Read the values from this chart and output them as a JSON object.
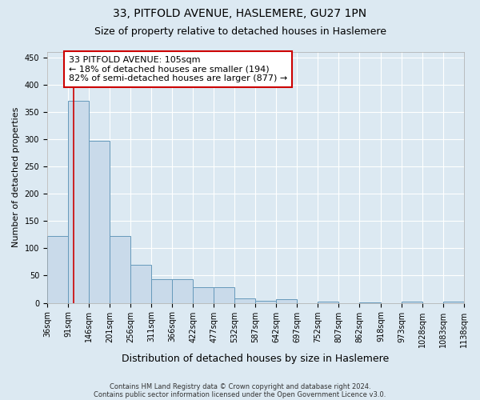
{
  "title": "33, PITFOLD AVENUE, HASLEMERE, GU27 1PN",
  "subtitle": "Size of property relative to detached houses in Haslemere",
  "xlabel": "Distribution of detached houses by size in Haslemere",
  "ylabel": "Number of detached properties",
  "bin_edges": [
    36,
    91,
    146,
    201,
    256,
    311,
    366,
    422,
    477,
    532,
    587,
    642,
    697,
    752,
    807,
    862,
    918,
    973,
    1028,
    1083,
    1138
  ],
  "bar_heights": [
    122,
    370,
    297,
    122,
    70,
    43,
    43,
    28,
    28,
    8,
    4,
    6,
    0,
    2,
    0,
    1,
    0,
    2,
    0,
    2
  ],
  "bar_facecolor": "#c9daea",
  "bar_edgecolor": "#6699bb",
  "property_size": 105,
  "vline_color": "#cc0000",
  "annotation_line1": "33 PITFOLD AVENUE: 105sqm",
  "annotation_line2": "← 18% of detached houses are smaller (194)",
  "annotation_line3": "82% of semi-detached houses are larger (877) →",
  "annotation_bbox_edgecolor": "#cc0000",
  "annotation_bbox_facecolor": "#ffffff",
  "ylim": [
    0,
    460
  ],
  "yticks": [
    0,
    50,
    100,
    150,
    200,
    250,
    300,
    350,
    400,
    450
  ],
  "footnote1": "Contains HM Land Registry data © Crown copyright and database right 2024.",
  "footnote2": "Contains public sector information licensed under the Open Government Licence v3.0.",
  "background_color": "#dce9f2",
  "plot_bg_color": "#dce9f2",
  "title_fontsize": 10,
  "subtitle_fontsize": 9,
  "xlabel_fontsize": 9,
  "ylabel_fontsize": 8,
  "tick_fontsize": 7,
  "annotation_fontsize": 8,
  "footnote_fontsize": 6
}
